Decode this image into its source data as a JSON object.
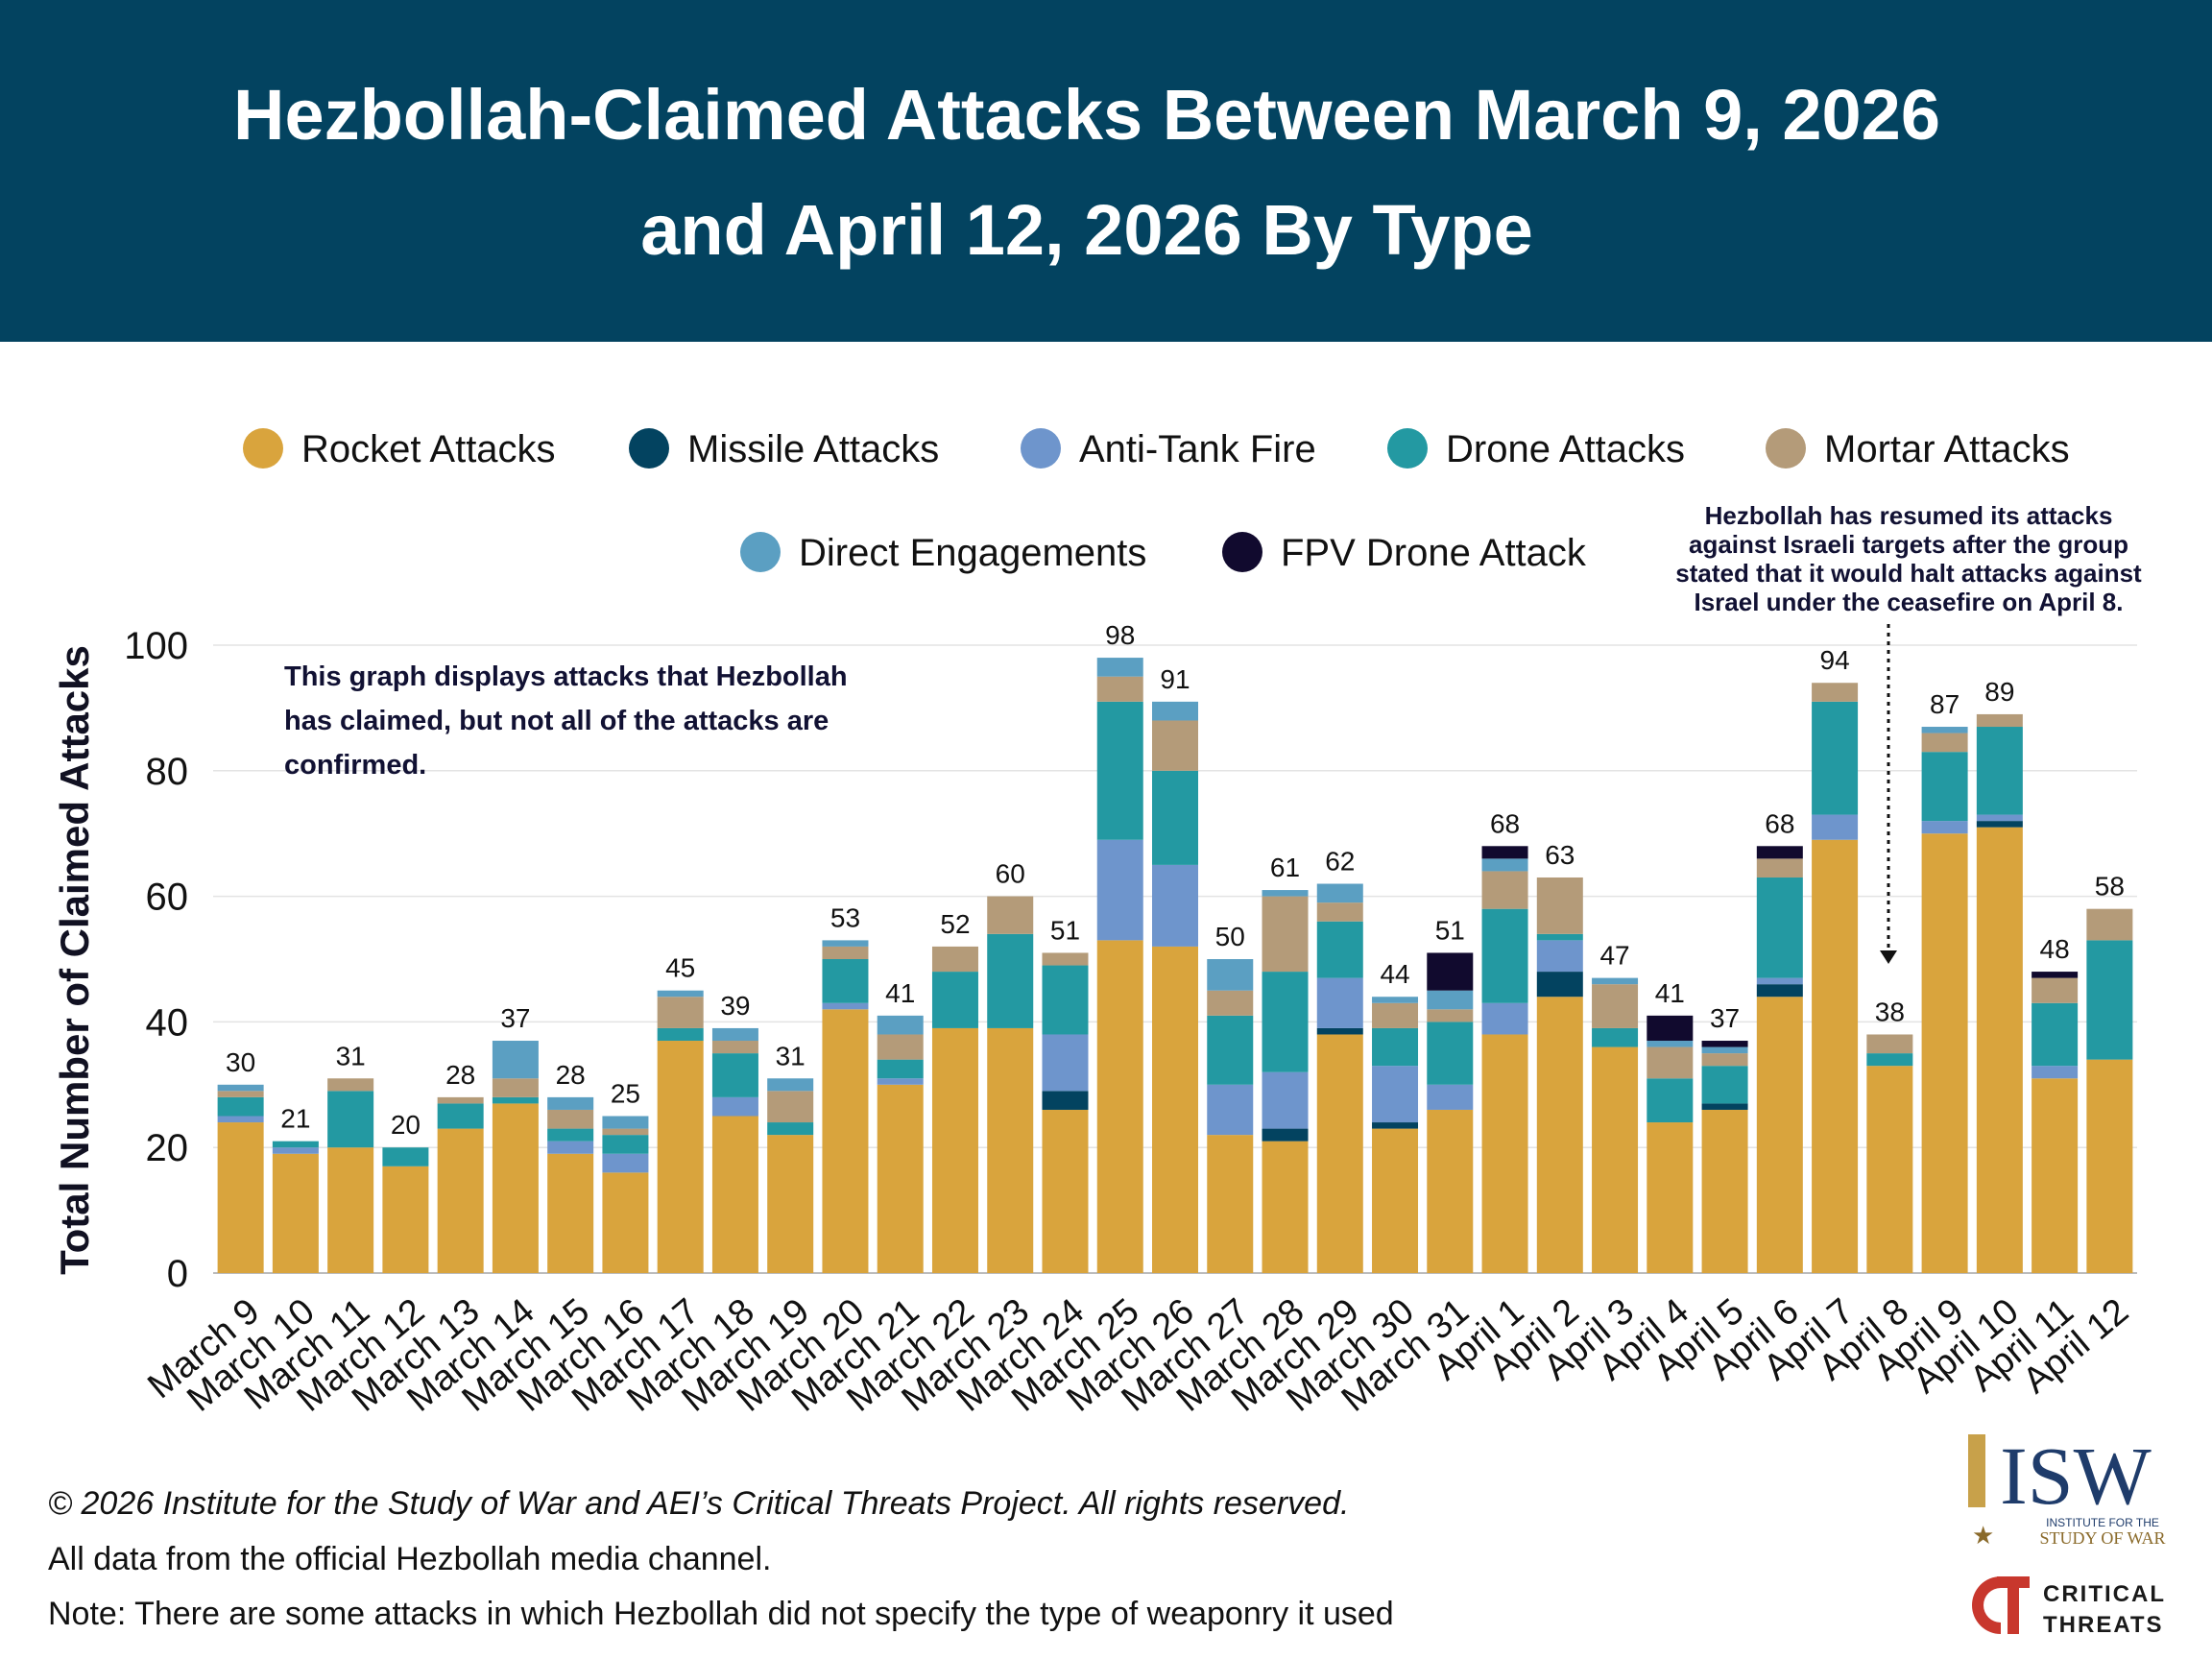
{
  "title_lines": [
    "Hezbollah-Claimed Attacks Between March 9, 2026",
    "and April 12, 2026 By Type"
  ],
  "chart_data": {
    "type": "bar",
    "stacked": true,
    "categories": [
      "March 9",
      "March 10",
      "March 11",
      "March 12",
      "March 13",
      "March 14",
      "March 15",
      "March 16",
      "March 17",
      "March 18",
      "March 19",
      "March 20",
      "March 21",
      "March 22",
      "March 23",
      "March 24",
      "March 25",
      "March 26",
      "March 27",
      "March 28",
      "March 29",
      "March 30",
      "March 31",
      "April 1",
      "April 2",
      "April 3",
      "April 4",
      "April 5",
      "April 6",
      "April 7",
      "April 8",
      "April 9",
      "April 10",
      "April 11",
      "April 12"
    ],
    "totals": [
      30,
      21,
      31,
      20,
      28,
      37,
      28,
      25,
      45,
      39,
      31,
      53,
      41,
      52,
      60,
      51,
      98,
      91,
      50,
      61,
      62,
      44,
      51,
      68,
      63,
      47,
      41,
      37,
      68,
      94,
      38,
      87,
      89,
      48,
      58
    ],
    "series": [
      {
        "name": "Rocket Attacks",
        "color": "#D9A43D",
        "values": [
          24,
          19,
          20,
          17,
          23,
          27,
          19,
          16,
          37,
          25,
          22,
          42,
          30,
          39,
          39,
          26,
          53,
          52,
          22,
          21,
          38,
          23,
          26,
          38,
          44,
          36,
          24,
          26,
          44,
          69,
          33,
          70,
          71,
          31,
          34
        ]
      },
      {
        "name": "Missile Attacks",
        "color": "#034360",
        "values": [
          0,
          0,
          0,
          0,
          0,
          0,
          0,
          0,
          0,
          0,
          0,
          0,
          0,
          0,
          0,
          3,
          0,
          0,
          0,
          2,
          1,
          1,
          0,
          0,
          4,
          0,
          0,
          1,
          2,
          0,
          0,
          0,
          1,
          0,
          0
        ]
      },
      {
        "name": "Anti-Tank Fire",
        "color": "#6E95CC",
        "values": [
          1,
          1,
          0,
          0,
          0,
          0,
          2,
          3,
          0,
          3,
          0,
          1,
          1,
          0,
          0,
          9,
          16,
          13,
          8,
          9,
          8,
          9,
          4,
          5,
          5,
          0,
          0,
          0,
          1,
          4,
          0,
          2,
          1,
          2,
          0
        ]
      },
      {
        "name": "Drone Attacks",
        "color": "#2399A2",
        "values": [
          3,
          1,
          9,
          3,
          4,
          1,
          2,
          3,
          2,
          7,
          2,
          7,
          3,
          9,
          15,
          11,
          22,
          15,
          11,
          16,
          9,
          6,
          10,
          15,
          1,
          3,
          7,
          6,
          16,
          18,
          2,
          11,
          14,
          10,
          19
        ]
      },
      {
        "name": "Mortar Attacks",
        "color": "#B49B79",
        "values": [
          1,
          0,
          2,
          0,
          1,
          3,
          3,
          1,
          5,
          2,
          5,
          2,
          4,
          4,
          6,
          2,
          4,
          8,
          4,
          12,
          3,
          4,
          2,
          6,
          9,
          7,
          5,
          2,
          3,
          3,
          3,
          3,
          2,
          4,
          5
        ]
      },
      {
        "name": "Direct Engagements",
        "color": "#5B9FC2",
        "values": [
          1,
          0,
          0,
          0,
          0,
          6,
          2,
          2,
          1,
          2,
          2,
          1,
          3,
          0,
          0,
          0,
          3,
          3,
          5,
          1,
          3,
          1,
          3,
          2,
          0,
          1,
          1,
          1,
          0,
          0,
          0,
          1,
          0,
          0,
          0
        ]
      },
      {
        "name": "FPV Drone Attack",
        "color": "#110A2E",
        "values": [
          0,
          0,
          0,
          0,
          0,
          0,
          0,
          0,
          0,
          0,
          0,
          0,
          0,
          0,
          0,
          0,
          0,
          0,
          0,
          0,
          0,
          0,
          6,
          2,
          0,
          0,
          4,
          1,
          2,
          0,
          0,
          0,
          0,
          1,
          0
        ]
      }
    ],
    "ylabel": "Total Number of Claimed Attacks",
    "xlabel": "",
    "ylim": [
      0,
      100
    ],
    "yticks": [
      0,
      20,
      40,
      60,
      80,
      100
    ],
    "grid": true,
    "legend_position": "top",
    "annotations": [
      "This graph displays attacks that Hezbollah has claimed, but not all of the attacks are confirmed.",
      "Hezbollah has resumed its attacks against Israeli targets after the group stated that it would halt attacks against Israel under the ceasefire on April 8."
    ]
  },
  "left_note_lines": [
    "This graph displays attacks that Hezbollah",
    "has claimed, but not all of the attacks are",
    "confirmed."
  ],
  "ceasefire_note_lines": [
    "Hezbollah has resumed its attacks",
    "against Israeli targets after the group",
    "stated that it would halt attacks against",
    "Israel under the ceasefire on April 8."
  ],
  "footer": {
    "copyright": "© 2026 Institute for the Study of War and AEI’s Critical Threats Project. All rights reserved.",
    "source": "All data from the official Hezbollah media channel.",
    "note": "Note: There are some attacks in which Hezbollah did not specify the type of weaponry it used"
  },
  "logos": {
    "isw_letters": "ISW",
    "isw_sub1": "INSTITUTE FOR THE",
    "isw_sub2": "STUDY OF WAR",
    "ct_line1": "CRITICAL",
    "ct_line2": "THREATS"
  }
}
